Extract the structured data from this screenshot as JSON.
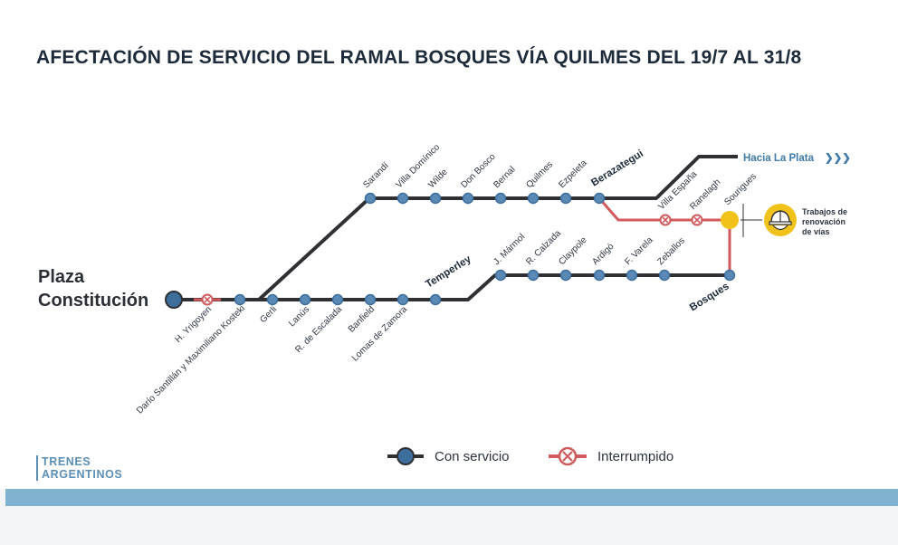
{
  "title": "AFECTACIÓN DE SERVICIO DEL RAMAL BOSQUES VÍA QUILMES DEL 19/7 AL 31/8",
  "origin": [
    "Plaza",
    "Constitución"
  ],
  "to_la_plata": "Hacia La Plata",
  "to_la_plata_arrows": "❯❯❯",
  "works_label": [
    "Trabajos de",
    "renovación",
    "de vías"
  ],
  "legend": {
    "ok": "Con servicio",
    "interrupted": "Interrumpido"
  },
  "logo": [
    "TRENES",
    "ARGENTINOS"
  ],
  "colors": {
    "line_dark": "#2e3034",
    "line_red": "#d05a5c",
    "station_blue": "#3e6e9b",
    "station_fill": "#5a89b6",
    "interrupted": "#d05a5c",
    "works": "#f1c21a",
    "accent_light": "#7fb3d0"
  },
  "stations": {
    "trunk": [
      {
        "name": "H. Yrigoyen",
        "status": "interrupted"
      },
      {
        "name": "Darío Santillán y Maximiliano Kosteki",
        "status": "ok"
      },
      {
        "name": "Gerli",
        "status": "ok"
      },
      {
        "name": "Lanús",
        "status": "ok"
      },
      {
        "name": "R. de Escalada",
        "status": "ok"
      },
      {
        "name": "Banfield",
        "status": "ok"
      },
      {
        "name": "Lomas de Zamora",
        "status": "ok"
      },
      {
        "name": "Temperley",
        "status": "ok",
        "bold": true
      }
    ],
    "quilmes": [
      {
        "name": "Sarandí",
        "status": "ok"
      },
      {
        "name": "Villa Domínico",
        "status": "ok"
      },
      {
        "name": "Wilde",
        "status": "ok"
      },
      {
        "name": "Don Bosco",
        "status": "ok"
      },
      {
        "name": "Bernal",
        "status": "ok"
      },
      {
        "name": "Quilmes",
        "status": "ok"
      },
      {
        "name": "Ezpeleta",
        "status": "ok"
      },
      {
        "name": "Berazategui",
        "status": "ok",
        "bold": true
      }
    ],
    "bosques_via_quilmes": [
      {
        "name": "Villa España",
        "status": "interrupted"
      },
      {
        "name": "Ranelagh",
        "status": "interrupted"
      },
      {
        "name": "Sourigues",
        "status": "interrupted"
      },
      {
        "name": "Bosques",
        "status": "ok",
        "bold": true
      }
    ],
    "temperley_bosques": [
      {
        "name": "J. Mármol",
        "status": "ok"
      },
      {
        "name": "R. Calzada",
        "status": "ok"
      },
      {
        "name": "Claypole",
        "status": "ok"
      },
      {
        "name": "Ardigó",
        "status": "ok"
      },
      {
        "name": "F. Varela",
        "status": "ok"
      },
      {
        "name": "Zeballos",
        "status": "ok"
      }
    ]
  }
}
